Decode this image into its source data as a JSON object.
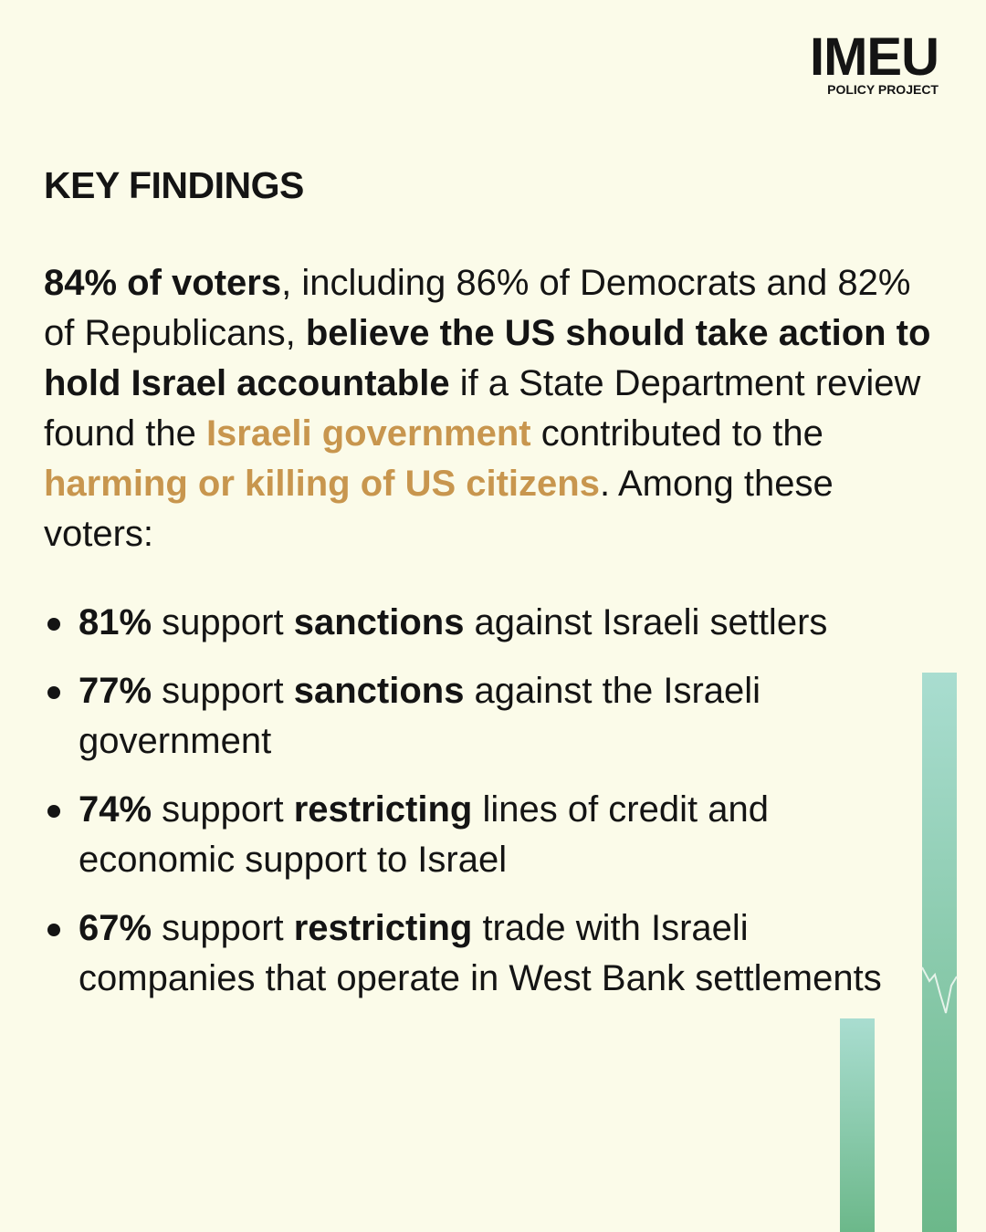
{
  "logo": {
    "title": "IMEU",
    "subtitle": "POLICY PROJECT"
  },
  "heading": "KEY FINDINGS",
  "paragraph": [
    "84% of voters",
    ", including 86% of Democrats and 82% of Republicans, ",
    "believe the US should take action to hold Israel accountable",
    " if a State Department review found the ",
    "Israeli government",
    " contributed to the ",
    "harming or killing of US citizens",
    ". Among these voters:"
  ],
  "bullets": [
    [
      "81%",
      " support ",
      "sanctions",
      " against Israeli settlers"
    ],
    [
      "77%",
      " support ",
      "sanctions",
      " against the Israeli government"
    ],
    [
      "74%",
      " support ",
      "restricting",
      " lines of credit and economic support to Israel"
    ],
    [
      "67%",
      " support ",
      "restricting",
      " trade with Israeli companies that operate in West Bank settlements"
    ]
  ]
}
